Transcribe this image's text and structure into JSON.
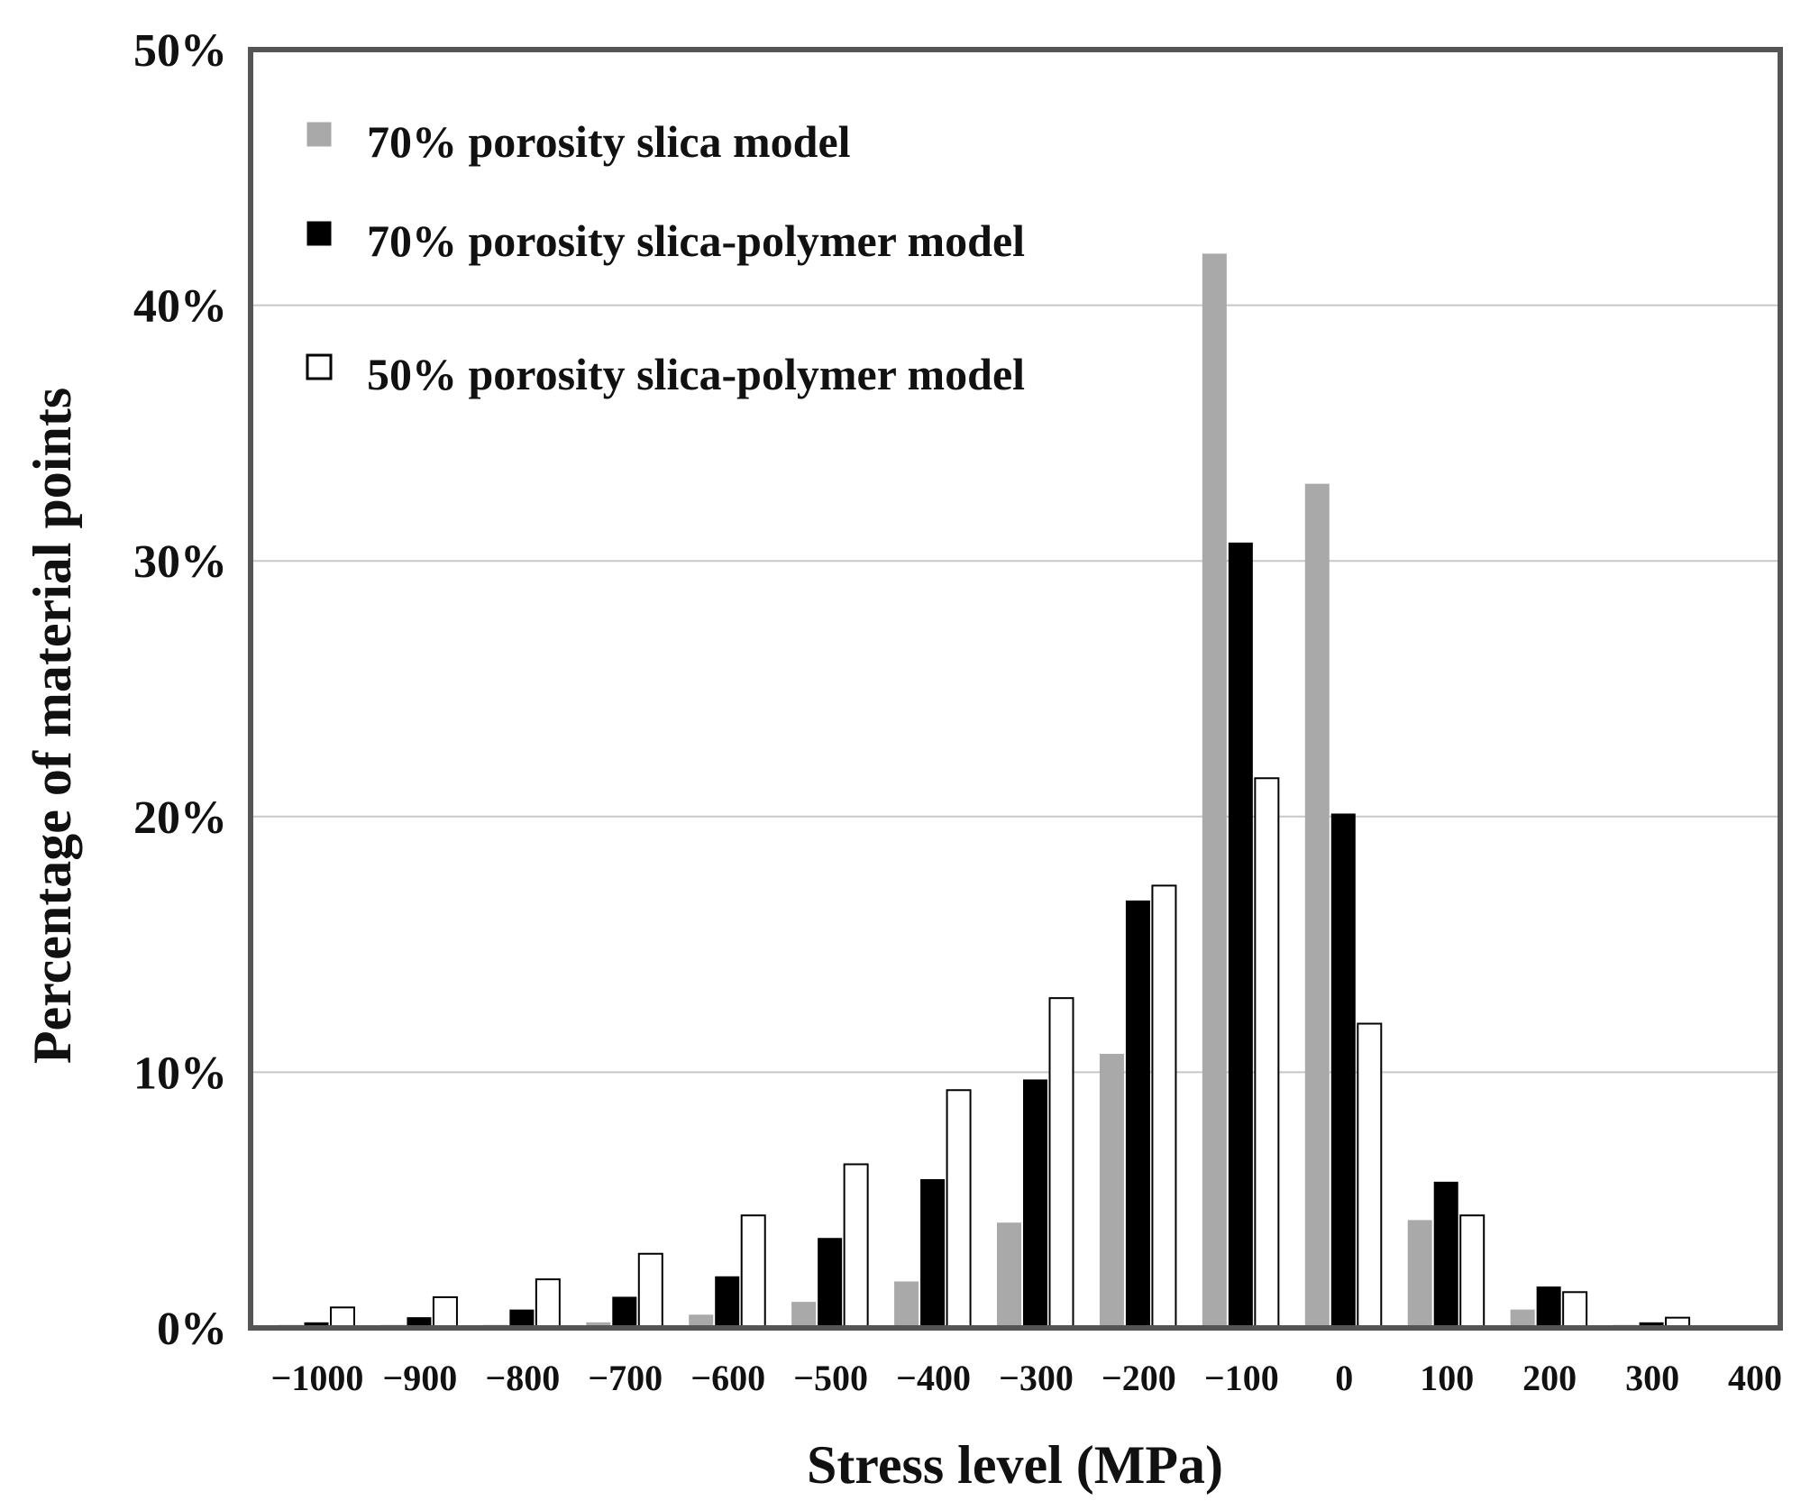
{
  "chart_data": {
    "type": "bar",
    "title": "",
    "xlabel": "Stress level (MPa)",
    "ylabel": "Percentage of material points",
    "ylim": [
      0,
      50
    ],
    "y_ticks": [
      "0%",
      "10%",
      "20%",
      "30%",
      "40%",
      "50%"
    ],
    "categories": [
      "−1000",
      "−900",
      "−800",
      "−700",
      "−600",
      "−500",
      "−400",
      "−300",
      "−200",
      "−100",
      "0",
      "100",
      "200",
      "300",
      "400"
    ],
    "grid": "horizontal",
    "legend_position": "top-left",
    "series": [
      {
        "name": "70% porosity slica model",
        "color": "#a9a9a9",
        "values": [
          0.1,
          0.1,
          0.1,
          0.2,
          0.5,
          1.0,
          1.8,
          4.1,
          10.7,
          42.0,
          33.0,
          4.2,
          0.7,
          0.1,
          0.0
        ]
      },
      {
        "name": "70% porosity slica-polymer model",
        "color": "#000000",
        "values": [
          0.2,
          0.4,
          0.7,
          1.2,
          2.0,
          3.5,
          5.8,
          9.7,
          16.7,
          30.7,
          20.1,
          5.7,
          1.6,
          0.2,
          0.0
        ]
      },
      {
        "name": "50% porosity slica-polymer model",
        "color": "#ffffff",
        "values": [
          0.8,
          1.2,
          1.9,
          2.9,
          4.4,
          6.4,
          9.3,
          12.9,
          17.3,
          21.5,
          11.9,
          4.4,
          1.4,
          0.4,
          0.0
        ]
      }
    ]
  }
}
